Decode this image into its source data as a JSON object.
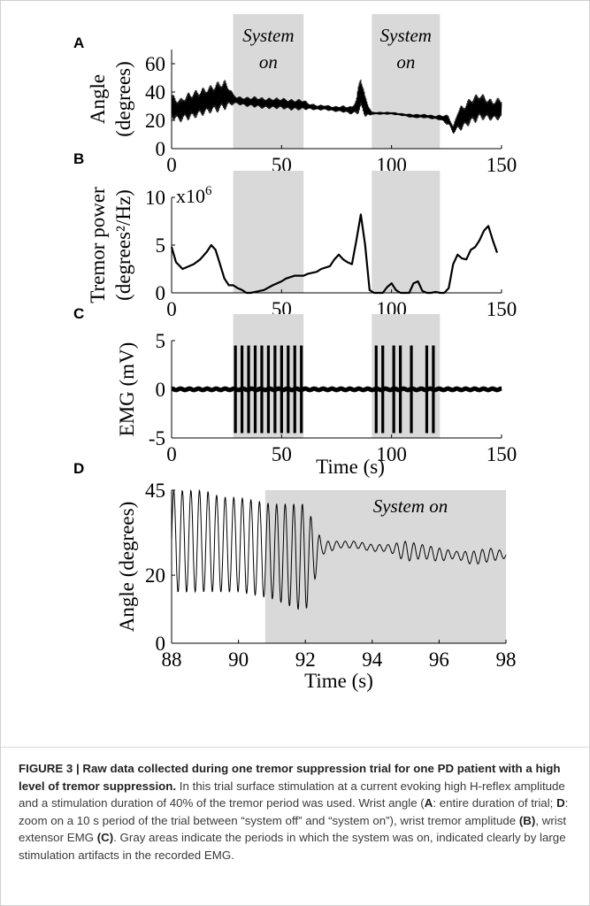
{
  "caption": {
    "lead": "FIGURE 3 | Raw data collected during one tremor suppression trial for one PD patient with a high level of tremor suppression.",
    "t1": " In this trial surface stimulation at a current evoking high H-reflex amplitude and a stimulation duration of 40% of the tremor period was used. Wrist angle (",
    "a": "A",
    "t2": ": entire duration of trial; ",
    "d": "D",
    "t3": ": zoom on a 10 s period of the trial between “system off” and “system on”), wrist tremor amplitude ",
    "b": "(B)",
    "t4": ", wrist extensor EMG ",
    "c": "(C)",
    "t5": ". Gray areas indicate the periods in which the system was on, indicated clearly by large stimulation artifacts in the recorded EMG."
  },
  "colors": {
    "shade": "#d9d9d9",
    "trace": "#000000"
  },
  "chart_data": [
    {
      "panel": "A",
      "type": "line",
      "ylabel": [
        "Angle",
        "(degrees)"
      ],
      "xlim": [
        0,
        150
      ],
      "ylim": [
        0,
        70
      ],
      "xticks": [
        "0",
        "50",
        "100",
        "150"
      ],
      "yticks": [
        "0",
        "20",
        "40",
        "60"
      ],
      "shaded_label": [
        "System",
        "on"
      ],
      "shaded_intervals": [
        [
          28,
          60
        ],
        [
          91,
          122
        ]
      ],
      "series": [
        {
          "x": [
            0,
            2,
            4,
            6,
            8,
            10,
            12,
            14,
            16,
            18,
            20,
            22,
            24,
            26,
            28,
            30,
            34,
            38,
            42,
            46,
            50,
            54,
            58,
            60,
            62,
            66,
            70,
            74,
            78,
            82,
            84,
            86,
            88,
            90,
            91,
            95,
            100,
            105,
            110,
            115,
            120,
            122,
            126,
            128,
            130,
            132,
            134,
            136,
            138,
            140,
            142,
            144,
            146,
            148
          ],
          "y": [
            30,
            28,
            27,
            29,
            30,
            31,
            32,
            33,
            34,
            35,
            36,
            37,
            38,
            37,
            35,
            34,
            33,
            33,
            32,
            32,
            32,
            31,
            31,
            31,
            30,
            29,
            29,
            28,
            28,
            27,
            30,
            40,
            30,
            26,
            25,
            25,
            25,
            24,
            23,
            23,
            22,
            22,
            20,
            13,
            20,
            22,
            24,
            27,
            28,
            30,
            29,
            28,
            27,
            28
          ],
          "amplitude": [
            18,
            17,
            17,
            18,
            20,
            20,
            20,
            20,
            20,
            20,
            22,
            22,
            22,
            16,
            8,
            6,
            7,
            8,
            8,
            8,
            8,
            8,
            8,
            8,
            5,
            4,
            4,
            4,
            5,
            6,
            12,
            30,
            15,
            8,
            2,
            2,
            2,
            2,
            3,
            3,
            3,
            4,
            8,
            5,
            16,
            18,
            18,
            20,
            20,
            20,
            18,
            16,
            15,
            16
          ]
        }
      ]
    },
    {
      "panel": "B",
      "type": "line",
      "ylabel": [
        "Tremor power",
        "(degrees²/Hz)"
      ],
      "yaxis_multiplier": "x10^6",
      "xlim": [
        0,
        150
      ],
      "ylim": [
        0,
        10
      ],
      "xticks": [
        "0",
        "50",
        "100",
        "150"
      ],
      "yticks": [
        "0",
        "5",
        "10"
      ],
      "shaded_intervals": [
        [
          28,
          60
        ],
        [
          91,
          122
        ]
      ],
      "series": [
        {
          "x": [
            0,
            2,
            5,
            10,
            13,
            16,
            18,
            20,
            22,
            24,
            26,
            28,
            30,
            32,
            34,
            36,
            38,
            42,
            46,
            50,
            52,
            56,
            60,
            62,
            66,
            68,
            72,
            74,
            76,
            78,
            80,
            82,
            84,
            86,
            88,
            90,
            92,
            94,
            96,
            98,
            100,
            102,
            104,
            106,
            108,
            110,
            112,
            114,
            116,
            118,
            120,
            122,
            124,
            126,
            128,
            130,
            132,
            134,
            136,
            138,
            140,
            142,
            144,
            146,
            148
          ],
          "y": [
            4.8,
            3.2,
            2.5,
            3.0,
            3.5,
            4.3,
            5.0,
            4.5,
            3.0,
            1.5,
            0.8,
            0.8,
            0.5,
            0.3,
            0.0,
            0.0,
            0.1,
            0.3,
            0.8,
            1.2,
            1.5,
            1.8,
            1.8,
            2.0,
            2.2,
            2.5,
            2.8,
            3.5,
            4.0,
            3.5,
            3.2,
            3.0,
            5.5,
            8.2,
            5.0,
            0.3,
            0.0,
            0.0,
            0.0,
            0.6,
            1.0,
            0.3,
            0.0,
            0.0,
            0.0,
            1.0,
            1.2,
            0.2,
            0.0,
            0.0,
            0.1,
            0.0,
            0.0,
            0.5,
            3.0,
            4.0,
            3.6,
            3.5,
            4.5,
            4.8,
            5.5,
            6.5,
            7.0,
            5.5,
            4.2
          ]
        }
      ]
    },
    {
      "panel": "C",
      "type": "line",
      "ylabel": [
        "EMG (mV)"
      ],
      "xlabel": "Time (s)",
      "xlim": [
        0,
        150
      ],
      "ylim": [
        -5,
        5
      ],
      "xticks": [
        "0",
        "50",
        "100",
        "150"
      ],
      "yticks": [
        "-5",
        "0",
        "5"
      ],
      "shaded_intervals": [
        [
          28,
          60
        ],
        [
          91,
          122
        ]
      ],
      "baseline_noise_amplitude": 0.3,
      "stimulation_bursts": {
        "times": [
          29,
          32,
          35,
          38,
          41,
          44,
          47,
          50,
          53,
          56,
          59,
          93,
          96,
          101,
          104,
          109,
          116,
          119
        ],
        "amplitude": [
          -4.5,
          4.5
        ]
      }
    },
    {
      "panel": "D",
      "type": "line",
      "ylabel": [
        "Angle (degrees)"
      ],
      "xlabel": "Time (s)",
      "xlim": [
        88,
        98
      ],
      "ylim": [
        0,
        45
      ],
      "xticks": [
        "88",
        "90",
        "92",
        "94",
        "96",
        "98"
      ],
      "yticks": [
        "0",
        "20",
        "45"
      ],
      "shaded_label": [
        "System on"
      ],
      "shaded_intervals": [
        [
          90.8,
          98
        ]
      ],
      "series": [
        {
          "x": [
            88,
            88.5,
            89,
            89.5,
            90,
            90.5,
            91,
            91.5,
            92,
            92.5,
            93,
            93.5,
            94,
            94.5,
            95,
            95.5,
            96,
            96.5,
            97,
            97.5,
            98
          ],
          "y": [
            30,
            30,
            30,
            29,
            29,
            28,
            27,
            26,
            25,
            28,
            29,
            29,
            28,
            28,
            27,
            27,
            26,
            26,
            25,
            26,
            26
          ],
          "amplitude": [
            15,
            15,
            15,
            14,
            14,
            14,
            14,
            15,
            16,
            2,
            1,
            1,
            1,
            1,
            3,
            2,
            2,
            1,
            2,
            2,
            1
          ]
        }
      ]
    }
  ]
}
